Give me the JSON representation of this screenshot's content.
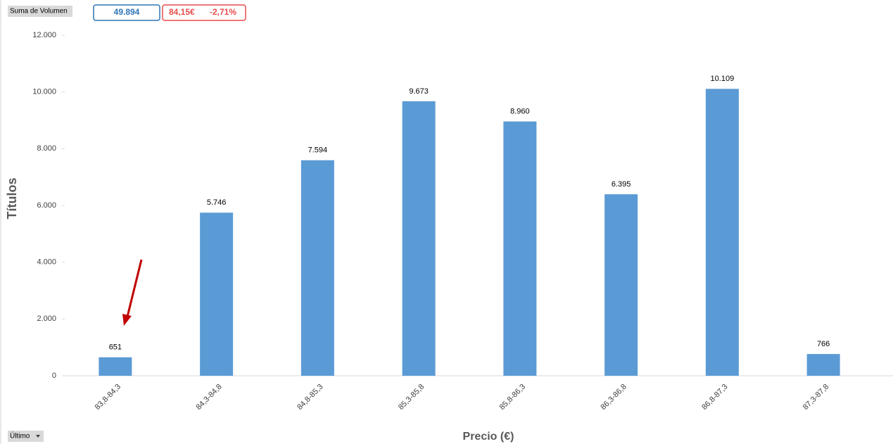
{
  "controls": {
    "field_button": "Suma de Volumen",
    "total": "49.894",
    "price": "84,15€",
    "change": "-2,71%",
    "filter_button": "Último"
  },
  "chart_data": {
    "type": "bar",
    "x_label": "Precio (€)",
    "y_label": "Títulos",
    "categories": [
      "83,8-84,3",
      "84,3-84,8",
      "84,8-85,3",
      "85,3-85,8",
      "85,8-86,3",
      "86,3-86,8",
      "86,8-87,3",
      "87,3-87,8"
    ],
    "values": [
      651,
      5746,
      7594,
      9673,
      8960,
      6395,
      10109,
      766
    ],
    "value_labels": [
      "651",
      "5.746",
      "7.594",
      "9.673",
      "8.960",
      "6.395",
      "10.109",
      "766"
    ],
    "color": "#5b9bd5",
    "ylim": [
      0,
      12000
    ],
    "yticks": [
      0,
      {
        "value": 2000,
        "label": "2.000"
      },
      {
        "value": 4000,
        "label": "4.000"
      },
      {
        "value": 6000,
        "label": "6.000"
      },
      {
        "value": 8000,
        "label": "8.000"
      },
      {
        "value": 10000,
        "label": "10.000"
      },
      {
        "value": 12000,
        "label": "12.000"
      }
    ]
  }
}
